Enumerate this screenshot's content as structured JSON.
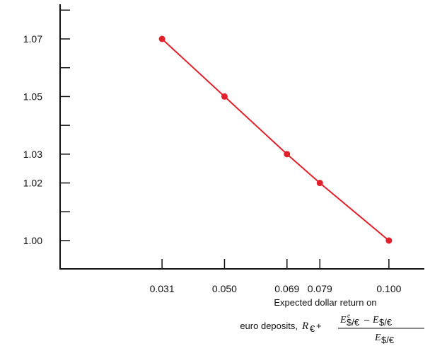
{
  "chart_data": {
    "type": "line",
    "title": "",
    "x": [
      0.031,
      0.05,
      0.069,
      0.079,
      0.1
    ],
    "x_tick_labels": [
      "0.031",
      "0.050",
      "0.069",
      "0.079",
      "0.100"
    ],
    "series": [
      {
        "values": [
          1.07,
          1.05,
          1.03,
          1.02,
          1.0
        ]
      }
    ],
    "y_ticks": [
      1.0,
      1.01,
      1.02,
      1.03,
      1.04,
      1.05,
      1.06,
      1.07,
      1.08
    ],
    "y_tick_labels": [
      "1.00",
      "1.02",
      "1.03",
      "1.05",
      "1.07"
    ],
    "xlim": [
      0.0,
      0.11
    ],
    "ylim": [
      0.99,
      1.09
    ],
    "xlabel_line1": "Expected dollar return on",
    "xlabel_line2": "euro deposits,",
    "xlabel_R": "R",
    "xlabel_euro": "€",
    "xlabel_plus": " +",
    "xlabel_E": "E",
    "xlabel_e": "e",
    "xlabel_sub": "$/€",
    "xlabel_minus": "–",
    "grid": false,
    "legend": "none",
    "line_color": "#e0202a",
    "axis_color": "#111111"
  }
}
